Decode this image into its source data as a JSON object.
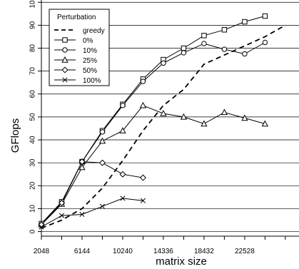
{
  "chart_data": {
    "type": "line",
    "xlabel": "matrix size",
    "ylabel": "GFlops",
    "xlim": [
      2048,
      28000
    ],
    "ylim": [
      -2,
      101
    ],
    "x_ticks": [
      2048,
      6144,
      10240,
      14336,
      18432,
      22528
    ],
    "x_tick_labels": [
      "2048",
      "6144",
      "10240",
      "14336",
      "18432",
      "22528"
    ],
    "y_ticks": [
      0,
      10,
      20,
      30,
      40,
      50,
      60,
      70,
      80,
      90,
      100
    ],
    "y_tick_labels": [
      "0",
      "10",
      "20",
      "30",
      "40",
      "50",
      "60",
      "70",
      "80",
      "90",
      "100"
    ],
    "grid": "horizontal",
    "legend": {
      "title": "Perturbation",
      "placement": "top-left"
    },
    "series": [
      {
        "name": "greedy",
        "marker": "none",
        "dash": true,
        "x": [
          2048,
          4096,
          6144,
          8192,
          10240,
          12288,
          14336,
          16384,
          18432,
          20480,
          22528,
          24576,
          26624
        ],
        "y": [
          1.5,
          5,
          10,
          19,
          31,
          44,
          55,
          62,
          73,
          77,
          81,
          85,
          90
        ]
      },
      {
        "name": "0%",
        "marker": "square",
        "dash": false,
        "x": [
          2048,
          4096,
          6144,
          8192,
          10240,
          12288,
          14336,
          16384,
          18432,
          20480,
          22528,
          24576
        ],
        "y": [
          3.5,
          13,
          30.5,
          44,
          55.5,
          66.5,
          75,
          80,
          85.5,
          88,
          91.5,
          94
        ]
      },
      {
        "name": "10%",
        "marker": "circle",
        "dash": false,
        "x": [
          2048,
          4096,
          6144,
          8192,
          10240,
          12288,
          14336,
          16384,
          18432,
          20480,
          22528,
          24576
        ],
        "y": [
          3,
          12.5,
          30.5,
          43.5,
          55,
          65.5,
          73.5,
          78,
          82,
          79.5,
          77.5,
          82.5
        ]
      },
      {
        "name": "25%",
        "marker": "triangle",
        "dash": false,
        "x": [
          2048,
          4096,
          6144,
          8192,
          10240,
          12288,
          14336,
          16384,
          18432,
          20480,
          22528,
          24576
        ],
        "y": [
          3,
          12,
          28,
          39.5,
          44,
          55,
          51.5,
          50,
          47,
          52,
          49.5,
          47
        ]
      },
      {
        "name": "50%",
        "marker": "diamond",
        "dash": false,
        "x": [
          2048,
          4096,
          6144,
          8192,
          10240,
          12288
        ],
        "y": [
          3,
          12.5,
          30.5,
          30,
          25,
          23.5
        ]
      },
      {
        "name": "100%",
        "marker": "cross",
        "dash": false,
        "x": [
          2048,
          4096,
          6144,
          8192,
          10240,
          12288
        ],
        "y": [
          2,
          7,
          7.5,
          11,
          14.5,
          13.5
        ]
      }
    ]
  }
}
